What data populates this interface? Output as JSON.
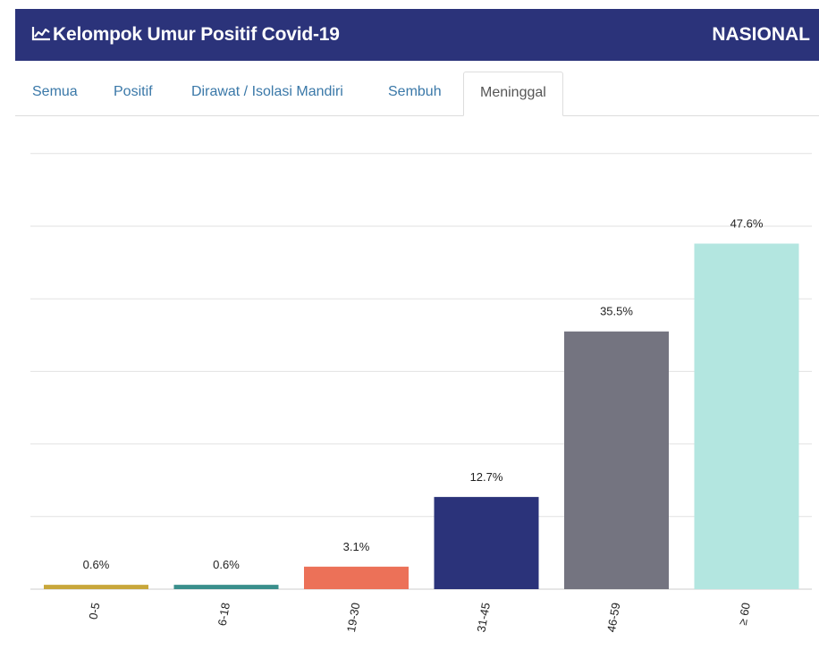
{
  "header": {
    "title": "Kelompok Umur Positif Covid-19",
    "scope": "NASIONAL",
    "icon": "line-chart-icon",
    "bg_color": "#2b337a"
  },
  "tabs": [
    {
      "label": "Semua",
      "active": false
    },
    {
      "label": "Positif",
      "active": false
    },
    {
      "label": "Dirawat / Isolasi Mandiri",
      "active": false
    },
    {
      "label": "Sembuh",
      "active": false
    },
    {
      "label": "Meninggal",
      "active": true
    }
  ],
  "chart_data": {
    "type": "bar",
    "categories": [
      "0-5",
      "6-18",
      "19-30",
      "31-45",
      "46-59",
      "≥ 60"
    ],
    "values": [
      0.6,
      0.6,
      3.1,
      12.7,
      35.5,
      47.6
    ],
    "data_labels": [
      "0.6%",
      "0.6%",
      "3.1%",
      "12.7%",
      "35.5%",
      "47.6%"
    ],
    "colors": [
      "#c8a73b",
      "#3a8f8c",
      "#ec7158",
      "#2b337a",
      "#747480",
      "#b3e6e0"
    ],
    "ylim": [
      0,
      60
    ],
    "grid": true,
    "legend": false
  }
}
